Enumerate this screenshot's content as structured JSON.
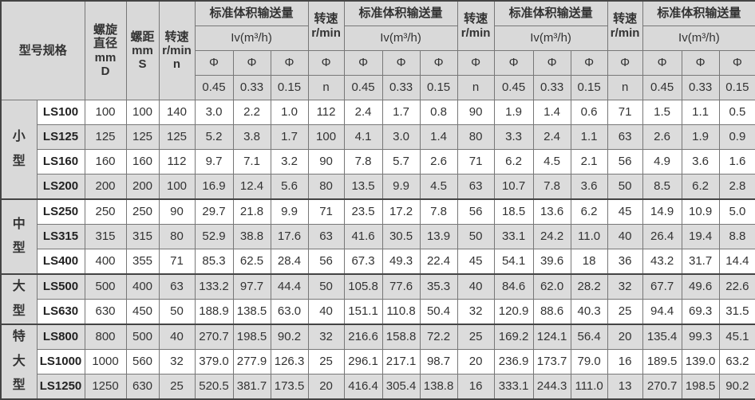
{
  "header": {
    "model_spec": "型号规格",
    "diameter": [
      "螺旋",
      "直径",
      "mm",
      "D"
    ],
    "pitch": [
      "螺距",
      "mm",
      "S"
    ],
    "speed_first": [
      "转速",
      "r/min",
      "n"
    ],
    "flow_title": "标准体积输送量",
    "flow_unit": "Iv(m³/h)",
    "speed_title": "转速",
    "speed_unit": "r/min",
    "phi": "Φ",
    "phi_values": [
      "0.45",
      "0.33",
      "0.15"
    ],
    "n": "n"
  },
  "groups": [
    {
      "label": "小型",
      "rows": 4
    },
    {
      "label": "中型",
      "rows": 3
    },
    {
      "label": "大型",
      "rows": 2
    },
    {
      "label": "特大型",
      "rows": 3
    }
  ],
  "rows": [
    [
      "LS100",
      "100",
      "100",
      "140",
      "3.0",
      "2.2",
      "1.0",
      "112",
      "2.4",
      "1.7",
      "0.8",
      "90",
      "1.9",
      "1.4",
      "0.6",
      "71",
      "1.5",
      "1.1",
      "0.5"
    ],
    [
      "LS125",
      "125",
      "125",
      "125",
      "5.2",
      "3.8",
      "1.7",
      "100",
      "4.1",
      "3.0",
      "1.4",
      "80",
      "3.3",
      "2.4",
      "1.1",
      "63",
      "2.6",
      "1.9",
      "0.9"
    ],
    [
      "LS160",
      "160",
      "160",
      "112",
      "9.7",
      "7.1",
      "3.2",
      "90",
      "7.8",
      "5.7",
      "2.6",
      "71",
      "6.2",
      "4.5",
      "2.1",
      "56",
      "4.9",
      "3.6",
      "1.6"
    ],
    [
      "LS200",
      "200",
      "200",
      "100",
      "16.9",
      "12.4",
      "5.6",
      "80",
      "13.5",
      "9.9",
      "4.5",
      "63",
      "10.7",
      "7.8",
      "3.6",
      "50",
      "8.5",
      "6.2",
      "2.8"
    ],
    [
      "LS250",
      "250",
      "250",
      "90",
      "29.7",
      "21.8",
      "9.9",
      "71",
      "23.5",
      "17.2",
      "7.8",
      "56",
      "18.5",
      "13.6",
      "6.2",
      "45",
      "14.9",
      "10.9",
      "5.0"
    ],
    [
      "LS315",
      "315",
      "315",
      "80",
      "52.9",
      "38.8",
      "17.6",
      "63",
      "41.6",
      "30.5",
      "13.9",
      "50",
      "33.1",
      "24.2",
      "11.0",
      "40",
      "26.4",
      "19.4",
      "8.8"
    ],
    [
      "LS400",
      "400",
      "355",
      "71",
      "85.3",
      "62.5",
      "28.4",
      "56",
      "67.3",
      "49.3",
      "22.4",
      "45",
      "54.1",
      "39.6",
      "18",
      "36",
      "43.2",
      "31.7",
      "14.4"
    ],
    [
      "LS500",
      "500",
      "400",
      "63",
      "133.2",
      "97.7",
      "44.4",
      "50",
      "105.8",
      "77.6",
      "35.3",
      "40",
      "84.6",
      "62.0",
      "28.2",
      "32",
      "67.7",
      "49.6",
      "22.6"
    ],
    [
      "LS630",
      "630",
      "450",
      "50",
      "188.9",
      "138.5",
      "63.0",
      "40",
      "151.1",
      "110.8",
      "50.4",
      "32",
      "120.9",
      "88.6",
      "40.3",
      "25",
      "94.4",
      "69.3",
      "31.5"
    ],
    [
      "LS800",
      "800",
      "500",
      "40",
      "270.7",
      "198.5",
      "90.2",
      "32",
      "216.6",
      "158.8",
      "72.2",
      "25",
      "169.2",
      "124.1",
      "56.4",
      "20",
      "135.4",
      "99.3",
      "45.1"
    ],
    [
      "LS1000",
      "1000",
      "560",
      "32",
      "379.0",
      "277.9",
      "126.3",
      "25",
      "296.1",
      "217.1",
      "98.7",
      "20",
      "236.9",
      "173.7",
      "79.0",
      "16",
      "189.5",
      "139.0",
      "63.2"
    ],
    [
      "LS1250",
      "1250",
      "630",
      "25",
      "520.5",
      "381.7",
      "173.5",
      "20",
      "416.4",
      "305.4",
      "138.8",
      "16",
      "333.1",
      "244.3",
      "111.0",
      "13",
      "270.7",
      "198.5",
      "90.2"
    ]
  ]
}
